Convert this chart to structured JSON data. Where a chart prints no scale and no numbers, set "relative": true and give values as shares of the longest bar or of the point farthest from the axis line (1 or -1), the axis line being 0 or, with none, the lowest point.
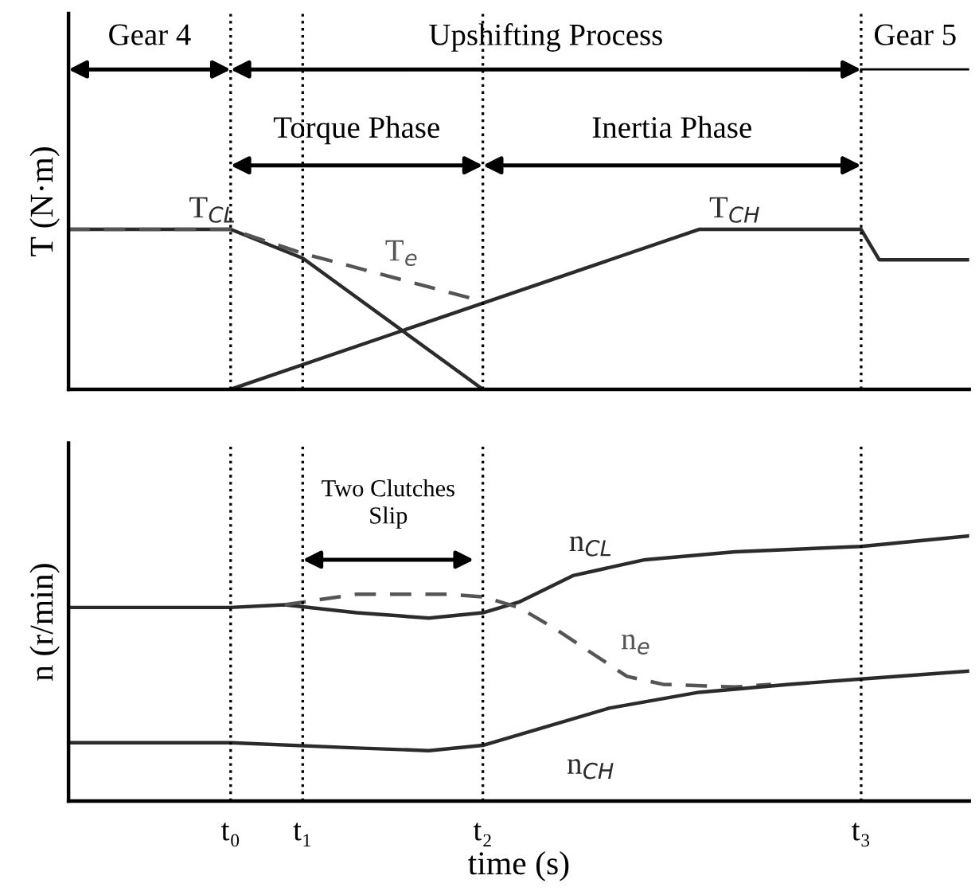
{
  "chart_data": [
    {
      "type": "line",
      "relative": true,
      "ylabel": "T (N·m)",
      "categories": [
        null,
        null,
        null,
        null,
        null,
        null,
        null,
        null,
        null,
        "t₀",
        null,
        null,
        null,
        "t₁",
        null,
        null,
        null,
        null,
        null,
        null,
        null,
        null,
        null,
        "t₂",
        null,
        null,
        null,
        null,
        null,
        null,
        null,
        null,
        null,
        null,
        null,
        null,
        null,
        null,
        null,
        null,
        null,
        null,
        null,
        null,
        "t₃",
        null,
        null,
        null,
        null,
        null,
        null
      ],
      "tick_labels": false,
      "grid": false,
      "legend": false,
      "marker": "none",
      "series": [
        {
          "name": "T$_{CL}$",
          "color": "#2b2b2b",
          "line_style": "solid",
          "values": [
            1,
            null,
            null,
            null,
            null,
            null,
            null,
            null,
            null,
            1,
            null,
            null,
            null,
            0.82,
            null,
            null,
            null,
            null,
            null,
            null,
            null,
            null,
            null,
            0,
            null,
            null,
            null,
            null,
            null,
            null,
            null,
            null,
            null,
            null,
            null,
            null,
            null,
            null,
            null,
            null,
            null,
            null,
            null,
            null,
            null,
            null,
            null,
            null,
            null,
            null,
            null
          ]
        },
        {
          "name": "T$_{e}$",
          "color": "#555555",
          "line_style": "dashed",
          "values": [
            1,
            null,
            null,
            null,
            null,
            null,
            null,
            null,
            null,
            1,
            null,
            null,
            null,
            0.85,
            null,
            null,
            null,
            null,
            null,
            null,
            null,
            null,
            null,
            0.55,
            null,
            null,
            null,
            null,
            null,
            null,
            null,
            null,
            null,
            null,
            null,
            null,
            null,
            null,
            null,
            null,
            null,
            null,
            null,
            null,
            null,
            null,
            null,
            null,
            null,
            null,
            null
          ]
        },
        {
          "name": "T$_{CH}$",
          "color": "#2b2b2b",
          "line_style": "solid",
          "values": [
            null,
            null,
            null,
            null,
            null,
            null,
            null,
            null,
            null,
            0,
            null,
            null,
            null,
            null,
            null,
            null,
            null,
            null,
            null,
            null,
            null,
            null,
            null,
            null,
            null,
            null,
            null,
            null,
            null,
            null,
            null,
            null,
            null,
            null,
            null,
            1,
            null,
            null,
            null,
            null,
            null,
            null,
            null,
            null,
            1,
            0.81,
            null,
            null,
            null,
            null,
            0.81
          ]
        }
      ],
      "ref_lines": [
        {
          "axis": "x",
          "value": "t₀",
          "label": null,
          "line_style": "dotted",
          "color": "#000000"
        },
        {
          "axis": "x",
          "value": "t₁",
          "label": null,
          "line_style": "dotted",
          "color": "#000000"
        },
        {
          "axis": "x",
          "value": "t₂",
          "label": null,
          "line_style": "dotted",
          "color": "#000000"
        },
        {
          "axis": "x",
          "value": "t₃",
          "label": null,
          "line_style": "dotted",
          "color": "#000000"
        }
      ],
      "annotations": [
        "Gear 4",
        "Upshifting Process",
        "Gear 5",
        "Torque Phase",
        "Inertia Phase"
      ]
    },
    {
      "type": "line",
      "relative": true,
      "xlabel": "time (s)",
      "ylabel": "n (r/min)",
      "categories": [
        null,
        null,
        null,
        null,
        null,
        null,
        null,
        null,
        null,
        "t₀",
        null,
        null,
        null,
        "t₁",
        null,
        null,
        null,
        null,
        null,
        null,
        null,
        null,
        null,
        "t₂",
        null,
        null,
        null,
        null,
        null,
        null,
        null,
        null,
        null,
        null,
        null,
        null,
        null,
        null,
        null,
        null,
        null,
        null,
        null,
        null,
        "t₃",
        null,
        null,
        null,
        null,
        null,
        null
      ],
      "tick_labels": "x",
      "grid": false,
      "legend": false,
      "marker": "none",
      "series": [
        {
          "name": "n$_{CL}$",
          "color": "#2b2b2b",
          "line_style": "solid",
          "values": [
            0.73,
            null,
            null,
            null,
            null,
            null,
            null,
            null,
            null,
            0.73,
            null,
            null,
            0.74,
            null,
            null,
            null,
            0.71,
            null,
            null,
            null,
            0.69,
            null,
            null,
            0.71,
            null,
            0.75,
            null,
            null,
            0.85,
            null,
            null,
            null,
            0.91,
            null,
            null,
            null,
            null,
            0.94,
            null,
            null,
            null,
            null,
            null,
            null,
            0.96,
            null,
            null,
            null,
            null,
            null,
            1
          ]
        },
        {
          "name": "n$_{e}$",
          "color": "#555555",
          "line_style": "dashed",
          "values": [
            null,
            null,
            null,
            null,
            null,
            null,
            null,
            null,
            null,
            null,
            null,
            null,
            0.74,
            null,
            null,
            null,
            0.78,
            null,
            null,
            null,
            null,
            0.78,
            null,
            0.77,
            null,
            0.73,
            null,
            0.65,
            null,
            0.56,
            null,
            0.47,
            null,
            0.44,
            null,
            null,
            null,
            0.43,
            null,
            0.44,
            null,
            null,
            null,
            null,
            null,
            null,
            null,
            null,
            null,
            null,
            null
          ]
        },
        {
          "name": "n$_{CH}$",
          "color": "#2b2b2b",
          "line_style": "solid",
          "values": [
            0.22,
            null,
            null,
            null,
            null,
            null,
            null,
            null,
            null,
            0.22,
            null,
            null,
            null,
            null,
            null,
            null,
            0.2,
            null,
            null,
            null,
            0.19,
            null,
            null,
            0.21,
            null,
            null,
            0.27,
            null,
            null,
            null,
            0.35,
            null,
            null,
            null,
            null,
            0.41,
            null,
            null,
            null,
            null,
            0.44,
            null,
            null,
            null,
            0.46,
            null,
            null,
            null,
            null,
            null,
            0.49
          ]
        }
      ],
      "ref_lines": [
        {
          "axis": "x",
          "value": "t₀",
          "label": null,
          "line_style": "dotted",
          "color": "#000000"
        },
        {
          "axis": "x",
          "value": "t₁",
          "label": null,
          "line_style": "dotted",
          "color": "#000000"
        },
        {
          "axis": "x",
          "value": "t₂",
          "label": null,
          "line_style": "dotted",
          "color": "#000000"
        },
        {
          "axis": "x",
          "value": "t₃",
          "label": null,
          "line_style": "dotted",
          "color": "#000000"
        }
      ],
      "annotations": [
        "Two Clutches\nSlip"
      ]
    }
  ]
}
